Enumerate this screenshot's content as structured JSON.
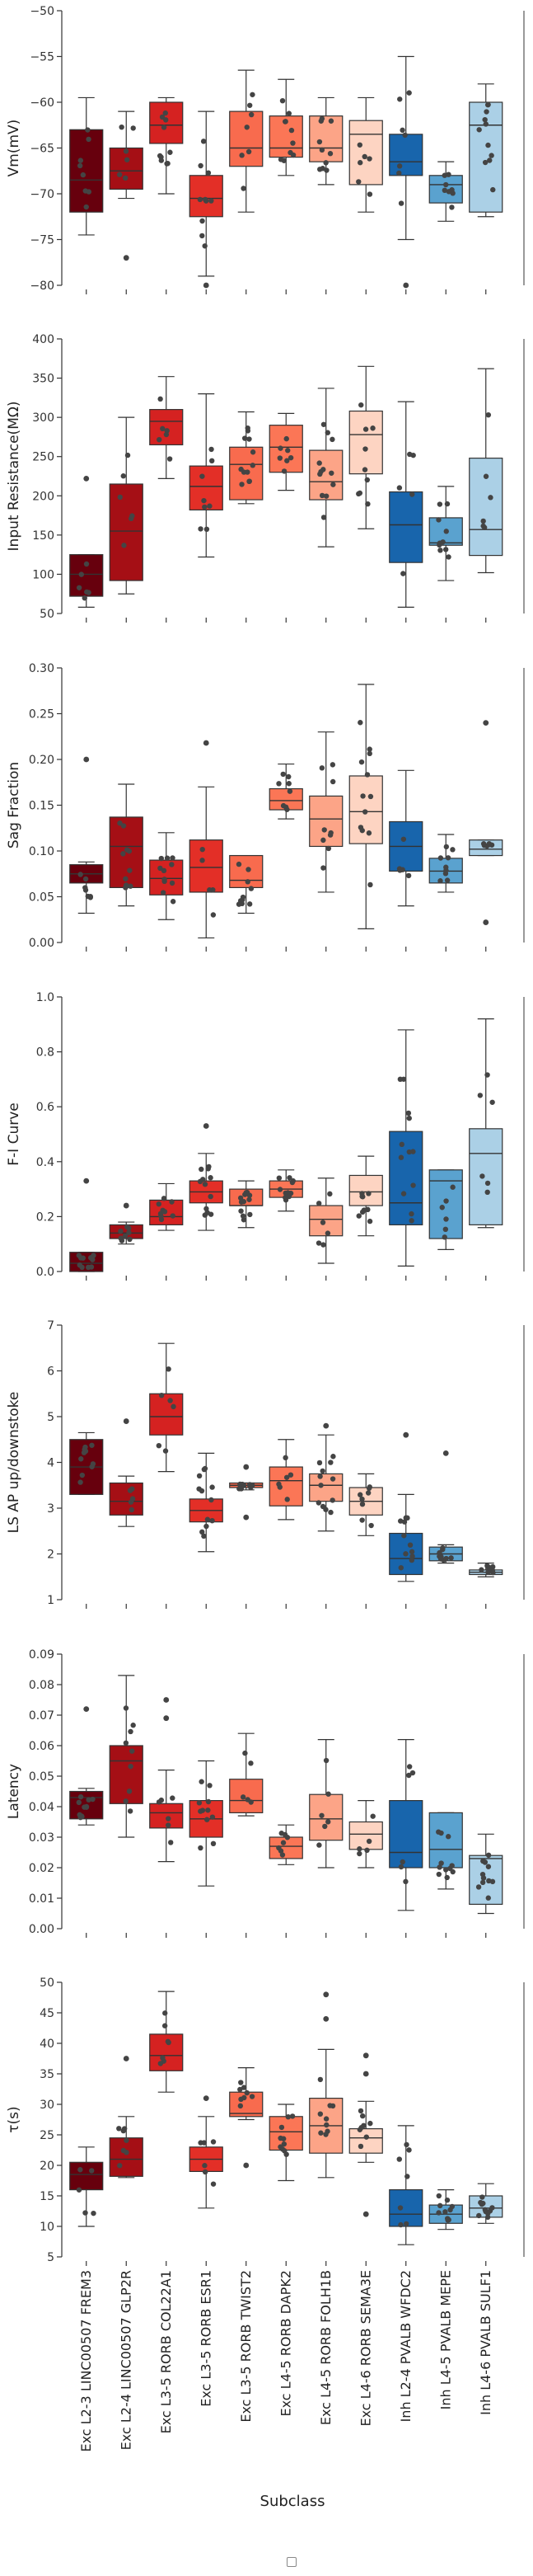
{
  "colors": [
    "#67000d",
    "#a50f15",
    "#d52221",
    "#e32f27",
    "#f86b4e",
    "#fb7656",
    "#fca487",
    "#fdd4c2",
    "#1865ac",
    "#5aa2cf",
    "#abd0e6"
  ],
  "chart_data": {
    "type": "box",
    "xlabel": "Subclass",
    "categories": [
      "Exc L2-3 LINC00507 FREM3",
      "Exc L2-4 LINC00507 GLP2R",
      "Exc L3-5 RORB COL22A1",
      "Exc L3-5 RORB ESR1",
      "Exc L3-5 RORB TWIST2",
      "Exc L4-5 RORB DAPK2",
      "Exc L4-5 RORB FOLH1B",
      "Exc L4-6 RORB SEMA3E",
      "Inh L2-4 PVALB WFDC2",
      "Inh L4-5 PVALB MEPE",
      "Inh L4-6 PVALB SULF1"
    ],
    "panels": [
      {
        "ylabel": "Vm(mV)",
        "ylim": [
          -80,
          -50
        ],
        "yticks": [
          -80,
          -75,
          -70,
          -65,
          -60,
          -55,
          -50
        ],
        "ytick_labels": [
          "−80",
          "−75",
          "−70",
          "−65",
          "−60",
          "−55",
          "−50"
        ],
        "boxes": [
          {
            "whislo": -74.5,
            "q1": -72.0,
            "med": -68.5,
            "q3": -63.0,
            "whishi": -59.5
          },
          {
            "whislo": -70.5,
            "q1": -69.5,
            "med": -67.5,
            "q3": -65.0,
            "whishi": -61.0
          },
          {
            "whislo": -70.0,
            "q1": -64.5,
            "med": -62.5,
            "q3": -60.0,
            "whishi": -59.5
          },
          {
            "whislo": -79.0,
            "q1": -72.5,
            "med": -70.5,
            "q3": -68.0,
            "whishi": -61.0
          },
          {
            "whislo": -72.0,
            "q1": -67.0,
            "med": -65.0,
            "q3": -61.0,
            "whishi": -56.5
          },
          {
            "whislo": -68.0,
            "q1": -66.0,
            "med": -65.0,
            "q3": -61.5,
            "whishi": -57.5
          },
          {
            "whislo": -69.0,
            "q1": -66.5,
            "med": -65.0,
            "q3": -61.5,
            "whishi": -59.5
          },
          {
            "whislo": -72.0,
            "q1": -69.0,
            "med": -63.5,
            "q3": -62.0,
            "whishi": -59.5
          },
          {
            "whislo": -75.0,
            "q1": -68.0,
            "med": -66.5,
            "q3": -63.5,
            "whishi": -55.0
          },
          {
            "whislo": -73.0,
            "q1": -71.0,
            "med": -69.0,
            "q3": -68.0,
            "whishi": -66.5
          },
          {
            "whislo": -72.5,
            "q1": -72.0,
            "med": -62.5,
            "q3": -60.0,
            "whishi": -58.0
          }
        ],
        "fliers": [
          [],
          [
            -77.0
          ],
          [],
          [
            -80.0
          ],
          [],
          [],
          [],
          [],
          [
            -80.0
          ],
          [],
          []
        ]
      },
      {
        "ylabel": "Input Resistance(MΩ)",
        "ylim": [
          50,
          400
        ],
        "yticks": [
          50,
          100,
          150,
          200,
          250,
          300,
          350,
          400
        ],
        "ytick_labels": [
          "50",
          "100",
          "150",
          "200",
          "250",
          "300",
          "350",
          "400"
        ],
        "boxes": [
          {
            "whislo": 58,
            "q1": 72,
            "med": 100,
            "q3": 125,
            "whishi": 125
          },
          {
            "whislo": 75,
            "q1": 92,
            "med": 155,
            "q3": 215,
            "whishi": 300
          },
          {
            "whislo": 222,
            "q1": 265,
            "med": 295,
            "q3": 310,
            "whishi": 352
          },
          {
            "whislo": 122,
            "q1": 182,
            "med": 212,
            "q3": 238,
            "whishi": 330
          },
          {
            "whislo": 190,
            "q1": 195,
            "med": 240,
            "q3": 262,
            "whishi": 307
          },
          {
            "whislo": 207,
            "q1": 230,
            "med": 262,
            "q3": 290,
            "whishi": 305
          },
          {
            "whislo": 135,
            "q1": 195,
            "med": 218,
            "q3": 258,
            "whishi": 337
          },
          {
            "whislo": 158,
            "q1": 228,
            "med": 278,
            "q3": 308,
            "whishi": 365
          },
          {
            "whislo": 58,
            "q1": 115,
            "med": 163,
            "q3": 205,
            "whishi": 320
          },
          {
            "whislo": 92,
            "q1": 137,
            "med": 140,
            "q3": 172,
            "whishi": 212
          },
          {
            "whislo": 102,
            "q1": 124,
            "med": 157,
            "q3": 248,
            "whishi": 362
          }
        ],
        "fliers": [
          [
            222
          ],
          [],
          [],
          [],
          [],
          [],
          [],
          [],
          [],
          [],
          []
        ]
      },
      {
        "ylabel": "Sag Fraction",
        "ylim": [
          0.0,
          0.3
        ],
        "yticks": [
          0.0,
          0.05,
          0.1,
          0.15,
          0.2,
          0.25,
          0.3
        ],
        "ytick_labels": [
          "0.00",
          "0.05",
          "0.10",
          "0.15",
          "0.20",
          "0.25",
          "0.30"
        ],
        "boxes": [
          {
            "whislo": 0.032,
            "q1": 0.065,
            "med": 0.075,
            "q3": 0.085,
            "whishi": 0.088
          },
          {
            "whislo": 0.04,
            "q1": 0.06,
            "med": 0.105,
            "q3": 0.137,
            "whishi": 0.173
          },
          {
            "whislo": 0.025,
            "q1": 0.052,
            "med": 0.07,
            "q3": 0.09,
            "whishi": 0.12
          },
          {
            "whislo": 0.005,
            "q1": 0.055,
            "med": 0.082,
            "q3": 0.112,
            "whishi": 0.17
          },
          {
            "whislo": 0.032,
            "q1": 0.06,
            "med": 0.068,
            "q3": 0.095,
            "whishi": 0.095
          },
          {
            "whislo": 0.135,
            "q1": 0.145,
            "med": 0.155,
            "q3": 0.168,
            "whishi": 0.195
          },
          {
            "whislo": 0.055,
            "q1": 0.105,
            "med": 0.135,
            "q3": 0.16,
            "whishi": 0.23
          },
          {
            "whislo": 0.015,
            "q1": 0.108,
            "med": 0.143,
            "q3": 0.182,
            "whishi": 0.282
          },
          {
            "whislo": 0.04,
            "q1": 0.078,
            "med": 0.105,
            "q3": 0.132,
            "whishi": 0.188
          },
          {
            "whislo": 0.055,
            "q1": 0.065,
            "med": 0.078,
            "q3": 0.092,
            "whishi": 0.118
          },
          {
            "whislo": 0.095,
            "q1": 0.095,
            "med": 0.102,
            "q3": 0.112,
            "whishi": 0.112
          }
        ],
        "fliers": [
          [
            0.2
          ],
          [],
          [],
          [
            0.218
          ],
          [],
          [],
          [],
          [],
          [],
          [],
          [
            0.24,
            0.022
          ]
        ]
      },
      {
        "ylabel": "F-I Curve",
        "ylim": [
          0.0,
          1.0
        ],
        "yticks": [
          0.0,
          0.2,
          0.4,
          0.6,
          0.8,
          1.0
        ],
        "ytick_labels": [
          "0.0",
          "0.2",
          "0.4",
          "0.6",
          "0.8",
          "1.0"
        ],
        "boxes": [
          {
            "whislo": 0.0,
            "q1": 0.0,
            "med": 0.03,
            "q3": 0.07,
            "whishi": 0.07
          },
          {
            "whislo": 0.1,
            "q1": 0.12,
            "med": 0.14,
            "q3": 0.17,
            "whishi": 0.18
          },
          {
            "whislo": 0.15,
            "q1": 0.17,
            "med": 0.2,
            "q3": 0.26,
            "whishi": 0.32
          },
          {
            "whislo": 0.15,
            "q1": 0.25,
            "med": 0.29,
            "q3": 0.33,
            "whishi": 0.43
          },
          {
            "whislo": 0.16,
            "q1": 0.24,
            "med": 0.24,
            "q3": 0.3,
            "whishi": 0.33
          },
          {
            "whislo": 0.22,
            "q1": 0.27,
            "med": 0.3,
            "q3": 0.33,
            "whishi": 0.37
          },
          {
            "whislo": 0.03,
            "q1": 0.13,
            "med": 0.19,
            "q3": 0.24,
            "whishi": 0.34
          },
          {
            "whislo": 0.13,
            "q1": 0.24,
            "med": 0.29,
            "q3": 0.35,
            "whishi": 0.42
          },
          {
            "whislo": 0.02,
            "q1": 0.17,
            "med": 0.25,
            "q3": 0.51,
            "whishi": 0.88
          },
          {
            "whislo": 0.08,
            "q1": 0.12,
            "med": 0.33,
            "q3": 0.37,
            "whishi": 0.37
          },
          {
            "whislo": 0.16,
            "q1": 0.17,
            "med": 0.43,
            "q3": 0.52,
            "whishi": 0.92
          }
        ],
        "fliers": [
          [
            0.33
          ],
          [
            0.24
          ],
          [],
          [
            0.53
          ],
          [],
          [],
          [],
          [],
          [],
          [],
          []
        ]
      },
      {
        "ylabel": "LS AP up/downstoke",
        "ylim": [
          1,
          7
        ],
        "yticks": [
          1,
          2,
          3,
          4,
          5,
          6,
          7
        ],
        "ytick_labels": [
          "1",
          "2",
          "3",
          "4",
          "5",
          "6",
          "7"
        ],
        "boxes": [
          {
            "whislo": 3.3,
            "q1": 3.3,
            "med": 3.9,
            "q3": 4.5,
            "whishi": 4.65
          },
          {
            "whislo": 2.6,
            "q1": 2.85,
            "med": 3.15,
            "q3": 3.55,
            "whishi": 3.7
          },
          {
            "whislo": 3.8,
            "q1": 4.6,
            "med": 5.0,
            "q3": 5.5,
            "whishi": 6.6
          },
          {
            "whislo": 2.05,
            "q1": 2.7,
            "med": 2.95,
            "q3": 3.2,
            "whishi": 4.2
          },
          {
            "whislo": 3.4,
            "q1": 3.45,
            "med": 3.5,
            "q3": 3.55,
            "whishi": 3.55
          },
          {
            "whislo": 2.75,
            "q1": 3.05,
            "med": 3.6,
            "q3": 3.9,
            "whishi": 4.5
          },
          {
            "whislo": 2.5,
            "q1": 3.15,
            "med": 3.5,
            "q3": 3.75,
            "whishi": 4.6
          },
          {
            "whislo": 2.4,
            "q1": 2.85,
            "med": 3.15,
            "q3": 3.45,
            "whishi": 3.75
          },
          {
            "whislo": 1.4,
            "q1": 1.55,
            "med": 1.9,
            "q3": 2.45,
            "whishi": 3.3
          },
          {
            "whislo": 1.8,
            "q1": 1.85,
            "med": 2.0,
            "q3": 2.15,
            "whishi": 2.2
          },
          {
            "whislo": 1.5,
            "q1": 1.55,
            "med": 1.6,
            "q3": 1.65,
            "whishi": 1.8
          }
        ],
        "fliers": [
          [],
          [
            4.9
          ],
          [],
          [],
          [
            3.9,
            2.8
          ],
          [],
          [
            4.8
          ],
          [],
          [
            4.6
          ],
          [
            4.2
          ],
          []
        ]
      },
      {
        "ylabel": "Latency",
        "ylim": [
          0.0,
          0.09
        ],
        "yticks": [
          0.0,
          0.01,
          0.02,
          0.03,
          0.04,
          0.05,
          0.06,
          0.07,
          0.08,
          0.09
        ],
        "ytick_labels": [
          "0.00",
          "0.01",
          "0.02",
          "0.03",
          "0.04",
          "0.05",
          "0.06",
          "0.07",
          "0.08",
          "0.09"
        ],
        "boxes": [
          {
            "whislo": 0.034,
            "q1": 0.036,
            "med": 0.043,
            "q3": 0.045,
            "whishi": 0.046
          },
          {
            "whislo": 0.03,
            "q1": 0.041,
            "med": 0.055,
            "q3": 0.06,
            "whishi": 0.083
          },
          {
            "whislo": 0.022,
            "q1": 0.033,
            "med": 0.038,
            "q3": 0.041,
            "whishi": 0.052
          },
          {
            "whislo": 0.014,
            "q1": 0.03,
            "med": 0.036,
            "q3": 0.042,
            "whishi": 0.055
          },
          {
            "whislo": 0.037,
            "q1": 0.038,
            "med": 0.042,
            "q3": 0.049,
            "whishi": 0.064
          },
          {
            "whislo": 0.021,
            "q1": 0.023,
            "med": 0.027,
            "q3": 0.03,
            "whishi": 0.034
          },
          {
            "whislo": 0.02,
            "q1": 0.029,
            "med": 0.036,
            "q3": 0.044,
            "whishi": 0.062
          },
          {
            "whislo": 0.02,
            "q1": 0.026,
            "med": 0.031,
            "q3": 0.035,
            "whishi": 0.042
          },
          {
            "whislo": 0.006,
            "q1": 0.02,
            "med": 0.025,
            "q3": 0.042,
            "whishi": 0.062
          },
          {
            "whislo": 0.013,
            "q1": 0.02,
            "med": 0.026,
            "q3": 0.038,
            "whishi": 0.038
          },
          {
            "whislo": 0.005,
            "q1": 0.008,
            "med": 0.023,
            "q3": 0.024,
            "whishi": 0.031
          }
        ],
        "fliers": [
          [
            0.072
          ],
          [],
          [
            0.075,
            0.069
          ],
          [],
          [],
          [],
          [],
          [],
          [],
          [],
          []
        ]
      },
      {
        "ylabel": "τ(s)",
        "ylim": [
          5,
          50
        ],
        "yticks": [
          5,
          10,
          15,
          20,
          25,
          30,
          35,
          40,
          45,
          50
        ],
        "ytick_labels": [
          "5",
          "10",
          "15",
          "20",
          "25",
          "30",
          "35",
          "40",
          "45",
          "50"
        ],
        "boxes": [
          {
            "whislo": 10.0,
            "q1": 16.0,
            "med": 18.5,
            "q3": 20.5,
            "whishi": 23.0
          },
          {
            "whislo": 18.0,
            "q1": 18.2,
            "med": 21.0,
            "q3": 24.5,
            "whishi": 28.0
          },
          {
            "whislo": 32.0,
            "q1": 35.5,
            "med": 38.0,
            "q3": 41.5,
            "whishi": 48.5
          },
          {
            "whislo": 13.0,
            "q1": 19.0,
            "med": 21.0,
            "q3": 23.0,
            "whishi": 28.0
          },
          {
            "whislo": 27.5,
            "q1": 28.0,
            "med": 28.5,
            "q3": 32.0,
            "whishi": 36.0
          },
          {
            "whislo": 17.5,
            "q1": 22.5,
            "med": 25.5,
            "q3": 28.0,
            "whishi": 30.0
          },
          {
            "whislo": 18.0,
            "q1": 22.0,
            "med": 26.5,
            "q3": 31.0,
            "whishi": 39.0
          },
          {
            "whislo": 20.5,
            "q1": 22.0,
            "med": 24.5,
            "q3": 26.0,
            "whishi": 30.5
          },
          {
            "whislo": 7.0,
            "q1": 10.0,
            "med": 12.0,
            "q3": 16.0,
            "whishi": 26.5
          },
          {
            "whislo": 9.5,
            "q1": 10.5,
            "med": 12.0,
            "q3": 13.5,
            "whishi": 16.0
          },
          {
            "whislo": 10.5,
            "q1": 11.5,
            "med": 13.0,
            "q3": 15.0,
            "whishi": 17.0
          }
        ],
        "fliers": [
          [],
          [
            37.5
          ],
          [],
          [
            31.0
          ],
          [
            20.0
          ],
          [],
          [
            48.0,
            44.0
          ],
          [
            38.0,
            35.0,
            12.0
          ],
          [],
          [],
          []
        ]
      }
    ]
  }
}
